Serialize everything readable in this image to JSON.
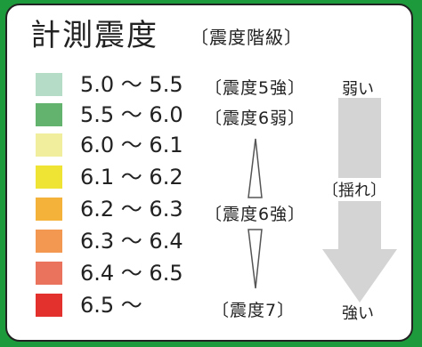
{
  "title": "計測震度",
  "subtitle": "〔震度階級〕",
  "rows": [
    {
      "range": "5.0 〜 5.5",
      "color": "#b4dcc6"
    },
    {
      "range": "5.5 〜 6.0",
      "color": "#63b26e"
    },
    {
      "range": "6.0 〜 6.1",
      "color": "#f1ee9e"
    },
    {
      "range": "6.1 〜 6.2",
      "color": "#efe434"
    },
    {
      "range": "6.2 〜 6.3",
      "color": "#f4b23a"
    },
    {
      "range": "6.3 〜 6.4",
      "color": "#f29850"
    },
    {
      "range": "6.4 〜 6.5",
      "color": "#e9735c"
    },
    {
      "range": "6.5 〜",
      "color": "#e3322e"
    }
  ],
  "levels": {
    "l5s": "〔震度5強〕",
    "l6w": "〔震度6弱〕",
    "l6s": "〔震度6強〕",
    "l7": "〔震度7〕"
  },
  "arrow": {
    "top_label": "弱い",
    "middle_label": "〔揺れ〕",
    "bottom_label": "強い",
    "color": "#d4d4d4"
  }
}
